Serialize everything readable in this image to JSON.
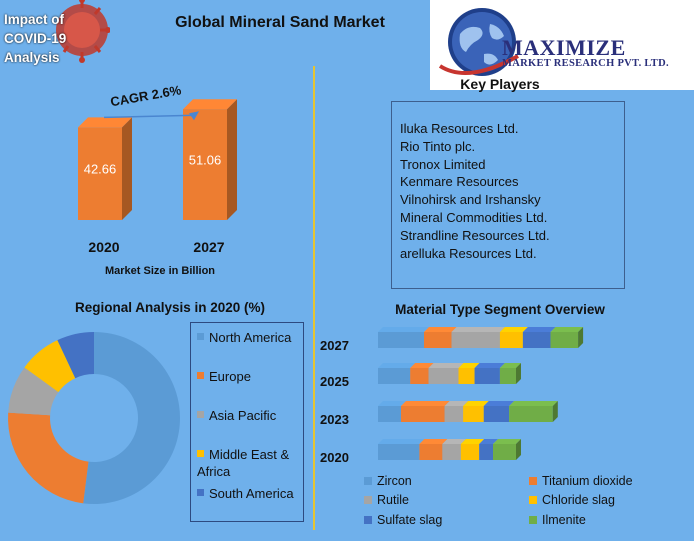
{
  "title": "Global Mineral Sand Market",
  "covid_badge": {
    "lines": [
      "Impact of",
      "COVID-19",
      "Analysis"
    ]
  },
  "logo": {
    "name": "MAXIMIZE",
    "subtitle": "MARKET RESEARCH PVT. LTD.",
    "icon": "globe-icon"
  },
  "colors": {
    "background": "#6fb0eb",
    "bar": "#ed7d31",
    "divider": "#e5c431",
    "zircon": "#5b9bd5",
    "titanium_dioxide": "#ed7d31",
    "rutile": "#a5a5a5",
    "chloride_slag": "#ffc000",
    "sulfate_slag": "#4472c4",
    "ilmenite": "#70ad47"
  },
  "market_size": {
    "categories": [
      "2020",
      "2027"
    ],
    "values_text": [
      "42.66",
      "51.06"
    ],
    "cagr_label": "CAGR 2.6%",
    "xlabel": "Market Size in Billion"
  },
  "key_players": {
    "title": "Key Players",
    "items": [
      "Iluka Resources Ltd.",
      "Rio Tinto plc.",
      "Tronox Limited",
      "Kenmare Resources",
      "Vilnohirsk and Irshansky",
      "Mineral Commodities Ltd.",
      "Strandline Resources Ltd.",
      "arelluka Resources Ltd."
    ]
  },
  "regional": {
    "title": "Regional Analysis in 2020 (%)",
    "legend": [
      "North America",
      "Europe",
      "Asia Pacific",
      "Middle East & Africa",
      "South America"
    ]
  },
  "material": {
    "title": "Material Type Segment Overview",
    "legend": [
      "Zircon",
      "Titanium dioxide",
      "Rutile",
      "Chloride slag",
      "Sulfate slag",
      "Ilmenite"
    ]
  },
  "chart_data": [
    {
      "type": "bar",
      "title": "",
      "categories": [
        "2020",
        "2027"
      ],
      "values": [
        42.66,
        51.06
      ],
      "xlabel": "Market Size in Billion",
      "ylabel": "",
      "ylim": [
        0,
        60
      ],
      "annotations": [
        "CAGR 2.6%"
      ],
      "grid": false
    },
    {
      "type": "pie",
      "title": "Regional Analysis in 2020 (%)",
      "donut": true,
      "labels": [
        "North America",
        "Europe",
        "Asia Pacific",
        "Middle East & Africa",
        "South America"
      ],
      "values": [
        52,
        24,
        9,
        8,
        7
      ],
      "legend_position": "right"
    },
    {
      "type": "bar",
      "orientation": "horizontal",
      "stacked": true,
      "title": "Material Type Segment Overview",
      "categories": [
        "2027",
        "2025",
        "2023",
        "2020"
      ],
      "series": [
        {
          "name": "Zircon",
          "values": [
            20,
            14,
            10,
            18
          ]
        },
        {
          "name": "Titanium dioxide",
          "values": [
            12,
            8,
            19,
            10
          ]
        },
        {
          "name": "Rutile",
          "values": [
            21,
            13,
            8,
            8
          ]
        },
        {
          "name": "Chloride slag",
          "values": [
            10,
            7,
            9,
            8
          ]
        },
        {
          "name": "Sulfate slag",
          "values": [
            12,
            11,
            11,
            6
          ]
        },
        {
          "name": "Ilmenite",
          "values": [
            12,
            7,
            19,
            10
          ]
        }
      ],
      "legend_position": "bottom",
      "grid": false
    }
  ]
}
